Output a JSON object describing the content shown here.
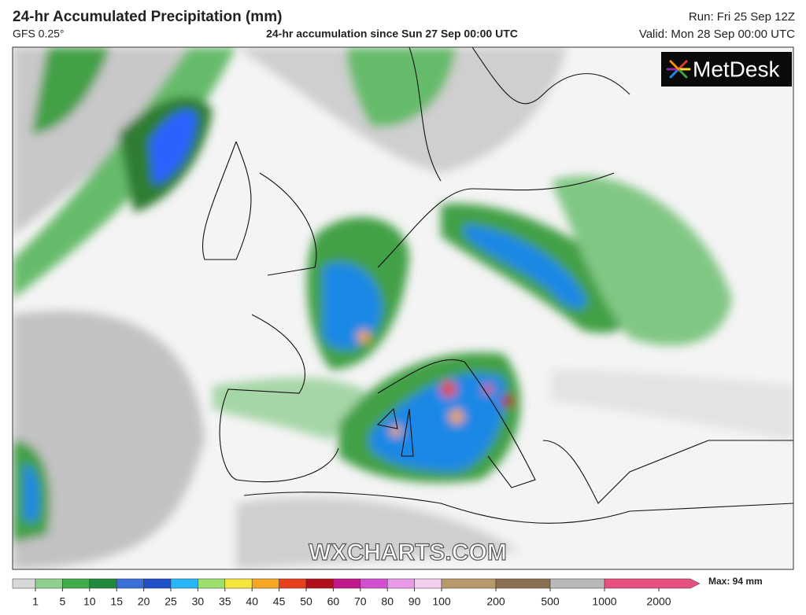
{
  "header": {
    "title": "24-hr Accumulated Precipitation (mm)",
    "model": "GFS 0.25°",
    "subtitle": "24-hr accumulation since Sun 27 Sep 00:00 UTC",
    "run": "Run: Fri 25 Sep 12Z",
    "valid": "Valid: Mon 28 Sep 00:00 UTC"
  },
  "logo": "MetDesk",
  "watermark": "WXCHARTS.COM",
  "colorbar": {
    "ticks": [
      1,
      5,
      10,
      15,
      20,
      25,
      30,
      35,
      40,
      45,
      50,
      60,
      70,
      80,
      90,
      100,
      200,
      500,
      1000,
      2000
    ],
    "colors": [
      "#d8d8d8",
      "#8fd08f",
      "#3fae4a",
      "#1f8a3c",
      "#3a6fd8",
      "#1f4fc8",
      "#29b6f6",
      "#9be06a",
      "#f5e63c",
      "#f5a623",
      "#e8401c",
      "#b0101c",
      "#c0198a",
      "#d24fd0",
      "#e89ae8",
      "#f4d0ee",
      "#b89a6a",
      "#8a7050",
      "#b8b8b8",
      "#e85080"
    ],
    "max_label": "Max: 94 mm"
  }
}
